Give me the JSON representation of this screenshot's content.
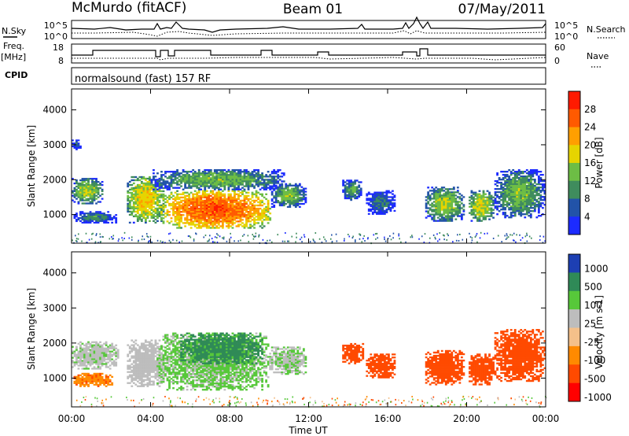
{
  "header": {
    "station": "McMurdo (fitACF)",
    "beam": "Beam 01",
    "date": "07/May/2011"
  },
  "aux_panels": {
    "nsky_label": "N.Sky",
    "nsearch_label": "N.Search",
    "nsky_ticks": [
      "10^5",
      "10^0"
    ],
    "nsearch_ticks": [
      "10^5",
      "10^0"
    ],
    "freq_label": "Freq.",
    "freq_unit": "[MHz]",
    "freq_ticks": [
      "18",
      "8"
    ],
    "nave_label": "Nave",
    "nave_ticks": [
      "60",
      "0"
    ],
    "cpid_label": "CPID",
    "cpid_text": "normalsound (fast) 157 RF"
  },
  "x_axis": {
    "label": "Time UT",
    "ticks": [
      "00:00",
      "04:00",
      "08:00",
      "12:00",
      "16:00",
      "20:00",
      "00:00"
    ]
  },
  "colors": {
    "power": [
      "#1c2bff",
      "#2253a8",
      "#3f8c5d",
      "#6dbd45",
      "#e6d400",
      "#ff9f00",
      "#ff5a00",
      "#ff1a00"
    ],
    "velocity": [
      "#ff0000",
      "#ff4a00",
      "#ff8a00",
      "#f4c08a",
      "#bdbdbd",
      "#57c83a",
      "#2f8a57",
      "#1d3fb3"
    ]
  },
  "chart_data": [
    {
      "type": "heatmap",
      "name": "power-panel",
      "title": "",
      "xlabel": "",
      "ylabel": "Slant Range [km]",
      "yticks": [
        "1000",
        "2000",
        "3000",
        "4000"
      ],
      "ylim": [
        180,
        4600
      ],
      "xlim_hours": [
        0,
        24
      ],
      "colorbar_label": "Power [dB]",
      "colorbar_ticks": [
        "4",
        "8",
        "12",
        "16",
        "20",
        "24",
        "28"
      ],
      "blobs": [
        {
          "t0": 0.0,
          "t1": 1.6,
          "r0": 1300,
          "r1": 2050,
          "v": 16
        },
        {
          "t0": 0.1,
          "t1": 2.3,
          "r0": 750,
          "r1": 1100,
          "v": 10
        },
        {
          "t0": 0.0,
          "t1": 0.5,
          "r0": 2850,
          "r1": 3150,
          "v": 7
        },
        {
          "t0": 2.8,
          "t1": 4.7,
          "r0": 750,
          "r1": 2100,
          "v": 20
        },
        {
          "t0": 4.5,
          "t1": 10.1,
          "r0": 600,
          "r1": 1700,
          "v": 27
        },
        {
          "t0": 4.0,
          "t1": 10.8,
          "r0": 1700,
          "r1": 2300,
          "v": 14
        },
        {
          "t0": 10.1,
          "t1": 11.9,
          "r0": 1200,
          "r1": 1900,
          "v": 14
        },
        {
          "t0": 13.7,
          "t1": 14.7,
          "r0": 1400,
          "r1": 2000,
          "v": 12
        },
        {
          "t0": 14.9,
          "t1": 16.4,
          "r0": 1000,
          "r1": 1700,
          "v": 9
        },
        {
          "t0": 17.9,
          "t1": 19.9,
          "r0": 800,
          "r1": 1800,
          "v": 16
        },
        {
          "t0": 20.1,
          "t1": 21.4,
          "r0": 800,
          "r1": 1700,
          "v": 18
        },
        {
          "t0": 21.4,
          "t1": 24.0,
          "r0": 900,
          "r1": 2300,
          "v": 14
        }
      ]
    },
    {
      "type": "heatmap",
      "name": "velocity-panel",
      "title": "",
      "xlabel": "Time UT",
      "ylabel": "Slant Range [km]",
      "yticks": [
        "1000",
        "2000",
        "3000",
        "4000"
      ],
      "ylim": [
        180,
        4600
      ],
      "xlim_hours": [
        0,
        24
      ],
      "colorbar_label": "Velocity [m s-1]",
      "colorbar_ticks": [
        "1000",
        "500",
        "100",
        "25",
        "-25",
        "-100",
        "-500",
        "-1000"
      ],
      "blobs": [
        {
          "t0": 0.0,
          "t1": 2.4,
          "r0": 1250,
          "r1": 2050,
          "v": 80
        },
        {
          "t0": 0.1,
          "t1": 2.1,
          "r0": 750,
          "r1": 1150,
          "v": -80
        },
        {
          "t0": 2.8,
          "t1": 4.7,
          "r0": 750,
          "r1": 2100,
          "v": 60
        },
        {
          "t0": 4.3,
          "t1": 10.0,
          "r0": 650,
          "r1": 2300,
          "v": 120
        },
        {
          "t0": 5.5,
          "t1": 9.7,
          "r0": 1400,
          "r1": 2300,
          "v": 700
        },
        {
          "t0": 10.0,
          "t1": 11.9,
          "r0": 1100,
          "r1": 1900,
          "v": 90
        },
        {
          "t0": 13.7,
          "t1": 14.8,
          "r0": 1400,
          "r1": 2000,
          "v": -200
        },
        {
          "t0": 14.9,
          "t1": 16.4,
          "r0": 1000,
          "r1": 1700,
          "v": -200
        },
        {
          "t0": 17.9,
          "t1": 19.9,
          "r0": 800,
          "r1": 1800,
          "v": -200
        },
        {
          "t0": 20.1,
          "t1": 21.4,
          "r0": 800,
          "r1": 1700,
          "v": -200
        },
        {
          "t0": 21.4,
          "t1": 24.0,
          "r0": 900,
          "r1": 2400,
          "v": -200
        }
      ]
    }
  ]
}
